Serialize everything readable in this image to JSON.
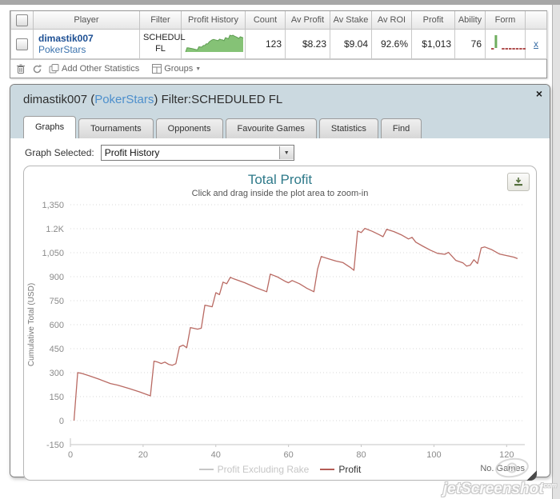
{
  "table": {
    "columns": [
      "",
      "Player",
      "Filter",
      "Profit History",
      "Count",
      "Av Profit",
      "Av Stake",
      "Av ROI",
      "Profit",
      "Ability",
      "Form",
      ""
    ],
    "row": {
      "player_name": "dimastik007",
      "player_site": "PokerStars",
      "filter_line1": "SCHEDUL",
      "filter_line2": "FL",
      "count": "123",
      "av_profit": "$8.23",
      "av_stake": "$9.04",
      "av_roi": "92.6%",
      "profit": "$1,013",
      "ability": "76",
      "remove_link": "x",
      "profit_history_spark": [
        0,
        300,
        290,
        270,
        250,
        230,
        200,
        170,
        155,
        370,
        360,
        350,
        460,
        470,
        580,
        575,
        720,
        800,
        870,
        895,
        870,
        840,
        805,
        915,
        880,
        860,
        805,
        1025,
        990,
        940,
        1200,
        1160,
        1195,
        1140,
        1090,
        1040,
        965,
        1085,
        1050,
        1013
      ],
      "form_spark": [
        -1,
        16,
        0,
        -1,
        -1,
        -1,
        -1,
        -1,
        -1,
        -1
      ]
    },
    "toolbar": {
      "add_other_statistics": "Add Other Statistics",
      "groups": "Groups",
      "groups_arrow": "▼"
    }
  },
  "dialog": {
    "title_prefix": "dimastik007 (",
    "title_site": "PokerStars",
    "title_suffix": ") Filter:SCHEDULED FL",
    "close_glyph": "×",
    "tabs": [
      {
        "label": "Graphs",
        "active": true
      },
      {
        "label": "Tournaments",
        "active": false
      },
      {
        "label": "Opponents",
        "active": false
      },
      {
        "label": "Favourite Games",
        "active": false
      },
      {
        "label": "Statistics",
        "active": false
      },
      {
        "label": "Find",
        "active": false
      }
    ],
    "graph_selected_label": "Graph Selected:",
    "graph_selected_value": "Profit History",
    "combo_arrow": "▼"
  },
  "chart_data": {
    "type": "line",
    "title": "Total Profit",
    "subtitle": "Click and drag inside the plot area to zoom-in",
    "ylabel": "Cumulative Total (USD)",
    "xlabel": "No. Games",
    "xlim": [
      0,
      125
    ],
    "ylim": [
      -150,
      1350
    ],
    "grid": "horizontal-dotted",
    "yticks": [
      {
        "v": 1350,
        "label": "1,350"
      },
      {
        "v": 1200,
        "label": "1.2K"
      },
      {
        "v": 1050,
        "label": "1,050"
      },
      {
        "v": 900,
        "label": "900"
      },
      {
        "v": 750,
        "label": "750"
      },
      {
        "v": 600,
        "label": "600"
      },
      {
        "v": 450,
        "label": "450"
      },
      {
        "v": 300,
        "label": "300"
      },
      {
        "v": 150,
        "label": "150"
      },
      {
        "v": 0,
        "label": "0"
      },
      {
        "v": -150,
        "label": "-150"
      }
    ],
    "xticks": [
      0,
      20,
      40,
      60,
      80,
      100,
      120
    ],
    "legend": [
      {
        "label": "Profit Excluding Rake",
        "enabled": false,
        "color": "#c6c6c6"
      },
      {
        "label": "Profit",
        "enabled": true,
        "color": "#b45c55"
      }
    ],
    "series": [
      {
        "name": "Profit",
        "color": "#b96a63",
        "points": [
          [
            1,
            0
          ],
          [
            2,
            300
          ],
          [
            3,
            296
          ],
          [
            5,
            282
          ],
          [
            8,
            258
          ],
          [
            11,
            232
          ],
          [
            13,
            222
          ],
          [
            16,
            202
          ],
          [
            19,
            180
          ],
          [
            22,
            155
          ],
          [
            23,
            372
          ],
          [
            24,
            366
          ],
          [
            25,
            357
          ],
          [
            26,
            366
          ],
          [
            27,
            352
          ],
          [
            28,
            346
          ],
          [
            29,
            356
          ],
          [
            30,
            462
          ],
          [
            31,
            472
          ],
          [
            32,
            456
          ],
          [
            33,
            582
          ],
          [
            35,
            572
          ],
          [
            36,
            578
          ],
          [
            37,
            722
          ],
          [
            39,
            712
          ],
          [
            40,
            800
          ],
          [
            41,
            788
          ],
          [
            42,
            866
          ],
          [
            43,
            856
          ],
          [
            44,
            896
          ],
          [
            45,
            886
          ],
          [
            48,
            862
          ],
          [
            51,
            832
          ],
          [
            54,
            806
          ],
          [
            55,
            916
          ],
          [
            57,
            898
          ],
          [
            59,
            872
          ],
          [
            60,
            862
          ],
          [
            61,
            876
          ],
          [
            63,
            856
          ],
          [
            65,
            828
          ],
          [
            67,
            806
          ],
          [
            68,
            948
          ],
          [
            69,
            1026
          ],
          [
            71,
            1012
          ],
          [
            73,
            998
          ],
          [
            75,
            988
          ],
          [
            77,
            958
          ],
          [
            78,
            940
          ],
          [
            79,
            1186
          ],
          [
            80,
            1176
          ],
          [
            81,
            1202
          ],
          [
            83,
            1184
          ],
          [
            85,
            1162
          ],
          [
            86,
            1150
          ],
          [
            87,
            1196
          ],
          [
            89,
            1182
          ],
          [
            91,
            1162
          ],
          [
            93,
            1136
          ],
          [
            94,
            1146
          ],
          [
            95,
            1116
          ],
          [
            97,
            1090
          ],
          [
            99,
            1066
          ],
          [
            101,
            1046
          ],
          [
            103,
            1040
          ],
          [
            104,
            1052
          ],
          [
            106,
            1002
          ],
          [
            108,
            986
          ],
          [
            109,
            966
          ],
          [
            110,
            972
          ],
          [
            111,
            1006
          ],
          [
            112,
            982
          ],
          [
            113,
            1080
          ],
          [
            114,
            1086
          ],
          [
            116,
            1068
          ],
          [
            118,
            1042
          ],
          [
            120,
            1032
          ],
          [
            122,
            1022
          ],
          [
            123,
            1013
          ]
        ]
      }
    ]
  },
  "watermark": {
    "text": "jetScreenshot",
    "suffix": "com"
  }
}
